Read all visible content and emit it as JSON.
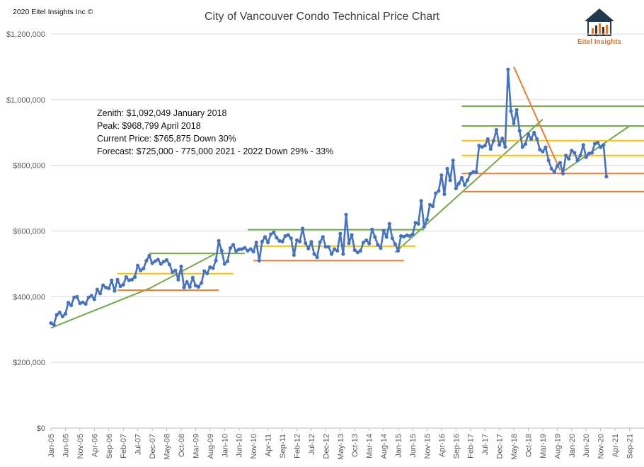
{
  "header": {
    "copyright": "2020 Eitel Insights Inc ©",
    "logo_text": "Eitel Insights"
  },
  "annotations": [
    "Zenith: $1,092,049  January 2018",
    "Peak: $968,799  April 2018",
    "Current Price: $765,875   Down 30%",
    "Forecast: $725,000  - 775,000 2021 - 2022 Down 29% - 33%"
  ],
  "colors": {
    "series": "#4472c4",
    "trend_green": "#70ad47",
    "resistance_yellow": "#ffc000",
    "support_orange": "#ed7d31",
    "grid": "#d9d9d9"
  },
  "chart_data": {
    "type": "line",
    "title": "City of Vancouver Condo Technical Price Chart",
    "xlabel": "",
    "ylabel": "",
    "ylim": [
      0,
      1200000
    ],
    "yticks": [
      0,
      200000,
      400000,
      600000,
      800000,
      1000000,
      1200000
    ],
    "ytick_labels": [
      "$0",
      "$200,000",
      "$400,000",
      "$600,000",
      "$800,000",
      "$1,000,000",
      "$1,200,000"
    ],
    "x_start": "2005-01",
    "xlim_months": [
      0,
      205
    ],
    "xtick_labels": [
      "Jan-05",
      "Jun-05",
      "Nov-05",
      "Apr-06",
      "Sep-06",
      "Feb-07",
      "Jul-07",
      "Dec-07",
      "May-08",
      "Oct-08",
      "Mar-09",
      "Aug-09",
      "Jan-10",
      "Jun-10",
      "Nov-10",
      "Apr-11",
      "Sep-11",
      "Feb-12",
      "Jul-12",
      "Dec-12",
      "May-13",
      "Oct-13",
      "Mar-14",
      "Aug-14",
      "Jan-15",
      "Jun-15",
      "Nov-15",
      "Apr-16",
      "Sep-16",
      "Feb-17",
      "Jul-17",
      "Dec-17",
      "May-18",
      "Oct-18",
      "Mar-19",
      "Aug-19",
      "Jan-20",
      "Jun-20",
      "Nov-20",
      "Apr-21",
      "Sep-21"
    ],
    "grid": true,
    "legend": "none",
    "series": [
      {
        "values": [
          320000,
          315000,
          345000,
          352000,
          340000,
          348000,
          382000,
          374000,
          398000,
          400000,
          380000,
          383000,
          378000,
          398000,
          403000,
          392000,
          422000,
          410000,
          435000,
          428000,
          425000,
          450000,
          418000,
          452000,
          432000,
          437000,
          460000,
          450000,
          452000,
          460000,
          495000,
          480000,
          486000,
          510000,
          525000,
          502000,
          508000,
          513000,
          500000,
          507000,
          512000,
          498000,
          475000,
          480000,
          452000,
          492000,
          428000,
          445000,
          430000,
          458000,
          434000,
          430000,
          442000,
          478000,
          471000,
          490000,
          487000,
          510000,
          570000,
          540000,
          500000,
          508000,
          548000,
          558000,
          539000,
          544000,
          545000,
          549000,
          540000,
          545000,
          537000,
          565000,
          510000,
          568000,
          582000,
          565000,
          590000,
          596000,
          580000,
          570000,
          568000,
          585000,
          588000,
          578000,
          527000,
          572000,
          568000,
          608000,
          563000,
          547000,
          567000,
          530000,
          520000,
          566000,
          582000,
          552000,
          552000,
          530000,
          545000,
          540000,
          592000,
          530000,
          650000,
          563000,
          588000,
          542000,
          535000,
          540000,
          565000,
          572000,
          562000,
          605000,
          582000,
          558000,
          548000,
          601000,
          582000,
          622000,
          578000,
          560000,
          540000,
          585000,
          583000,
          587000,
          585000,
          590000,
          625000,
          622000,
          692000,
          613000,
          635000,
          680000,
          675000,
          715000,
          722000,
          770000,
          712000,
          790000,
          755000,
          815000,
          730000,
          745000,
          762000,
          740000,
          755000,
          775000,
          780000,
          780000,
          860000,
          856000,
          860000,
          880000,
          850000,
          875000,
          908000,
          862000,
          882000,
          856000,
          1092049,
          965000,
          928000,
          968799,
          905000,
          856000,
          865000,
          895000,
          880000,
          900000,
          880000,
          848000,
          842000,
          855000,
          815000,
          790000,
          780000,
          798000,
          808000,
          775000,
          830000,
          820000,
          845000,
          838000,
          815000,
          830000,
          862000,
          825000,
          836000,
          838000,
          866000,
          869000,
          855000,
          862000,
          765875
        ]
      }
    ],
    "trendlines": [
      {
        "color": "green",
        "points": [
          [
            0,
            305000
          ],
          [
            34,
            425000
          ],
          [
            57,
            532000
          ]
        ]
      },
      {
        "color": "green",
        "points": [
          [
            34,
            532000
          ],
          [
            67,
            532000
          ]
        ]
      },
      {
        "color": "green",
        "points": [
          [
            68,
            604000
          ],
          [
            129,
            604000
          ]
        ]
      },
      {
        "color": "green",
        "points": [
          [
            119,
            535000
          ],
          [
            170,
            940000
          ]
        ]
      },
      {
        "color": "green",
        "points": [
          [
            142,
            980000
          ],
          [
            205,
            980000
          ]
        ]
      },
      {
        "color": "green",
        "points": [
          [
            142,
            920000
          ],
          [
            205,
            920000
          ]
        ]
      },
      {
        "color": "green",
        "points": [
          [
            176,
            775000
          ],
          [
            200,
            920000
          ]
        ]
      },
      {
        "color": "yellow",
        "points": [
          [
            23,
            470000
          ],
          [
            63,
            470000
          ]
        ]
      },
      {
        "color": "yellow",
        "points": [
          [
            70,
            554000
          ],
          [
            126,
            554000
          ]
        ]
      },
      {
        "color": "yellow",
        "points": [
          [
            142,
            875000
          ],
          [
            205,
            875000
          ]
        ]
      },
      {
        "color": "yellow",
        "points": [
          [
            142,
            830000
          ],
          [
            205,
            830000
          ]
        ]
      },
      {
        "color": "orange",
        "points": [
          [
            23,
            420000
          ],
          [
            58,
            420000
          ]
        ]
      },
      {
        "color": "orange",
        "points": [
          [
            70,
            510000
          ],
          [
            122,
            510000
          ]
        ]
      },
      {
        "color": "orange",
        "points": [
          [
            142,
            775000
          ],
          [
            205,
            775000
          ]
        ]
      },
      {
        "color": "orange",
        "points": [
          [
            142,
            720000
          ],
          [
            205,
            720000
          ]
        ]
      },
      {
        "color": "orange",
        "points": [
          [
            160,
            1100000
          ],
          [
            176,
            785000
          ]
        ]
      }
    ]
  }
}
